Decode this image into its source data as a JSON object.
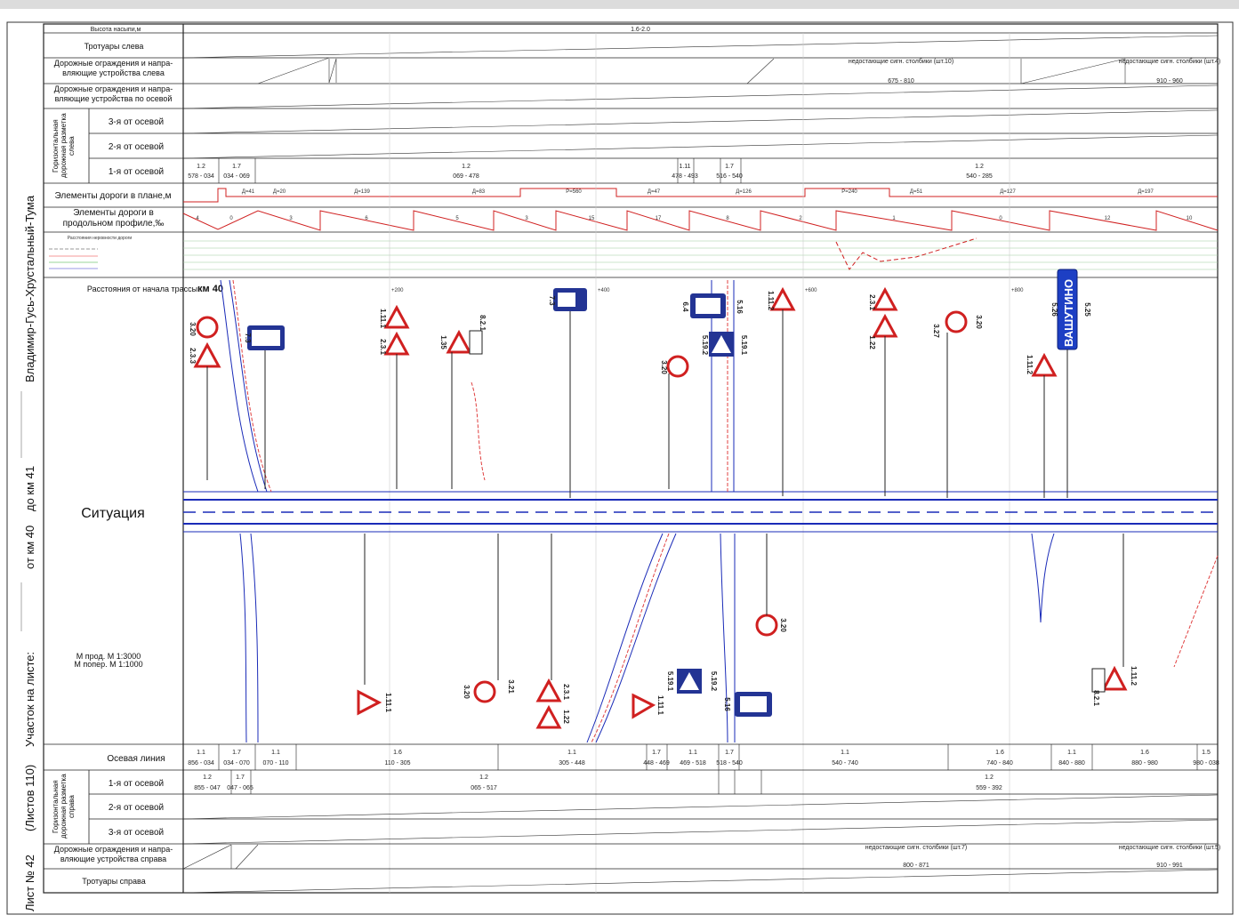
{
  "side_title": {
    "sheet": "Лист № 42",
    "sheets_total": "(Листов 110)",
    "section_label": "Участок на листе:",
    "from_km": "от км 40",
    "to_km": "до км 41",
    "road": "Владимир-Гусь-Хрустальный-Тума"
  },
  "top_rows": {
    "embankment": {
      "label": "Высота насыпи,м",
      "value": "1.6-2.0"
    },
    "sidewalks_left": "Тротуары слева",
    "barriers_left": "Дорожные ограждения и напра- вляющие устройства слева",
    "barriers_axis": "Дорожные ограждения и напра- вляющие устройства по осевой",
    "markings_left_group": "Горизонтальная дорожная разметка слева",
    "marking_rows": [
      "3-я от осевой",
      "2-я от осевой",
      "1-я от осевой"
    ],
    "plan_elements": "Элементы дороги в плане,м",
    "profile_elements": "Элементы дороги в продольном профиле,‰",
    "unevenness": "Расстояния неровности дороги"
  },
  "barrier_notes_left": [
    {
      "text": "недостающие сигн. столбики (шт.10)",
      "range": "675 - 810"
    },
    {
      "text": "недостающие сигн. столбики (шт.4)",
      "range": "910 - 960"
    }
  ],
  "left_marking_1": [
    {
      "code": "1.2",
      "range": "578 - 034"
    },
    {
      "code": "1.7",
      "range": "034 - 069"
    },
    {
      "code": "1.2",
      "range": "069 - 478"
    },
    {
      "code": "1.11",
      "range": "478 - 493"
    },
    {
      "code": "1.7",
      "range": "516 - 540"
    },
    {
      "code": "1.2",
      "range": "540 - 285"
    }
  ],
  "plan_labels": [
    "Д=41",
    "Д=20",
    "Д=139",
    "Д=83",
    "Р=560",
    "Д=47",
    "Д=126",
    "Р=240",
    "Д=51",
    "Д=127",
    "Д=197"
  ],
  "profile_values": [
    "4",
    "0",
    "3",
    "6",
    "5",
    "3",
    "15",
    "17",
    "8",
    "2",
    "1",
    "0",
    "12",
    "10"
  ],
  "distance_label": "Расстояния от начала трассы",
  "km_start": "км 40",
  "pickets": [
    "+200",
    "+400",
    "+600",
    "+800"
  ],
  "situation": "Ситуация",
  "scale": {
    "long": "М прод.  М 1:3000",
    "cross": "М попер.  М 1:1000"
  },
  "village": "ВАШУТИНО",
  "signs_top": [
    "2.3.3",
    "3.20",
    "7.3",
    "2.3.1",
    "1.11.1",
    "1.35",
    "8.2.1",
    "7.3",
    "5.16",
    "6.4",
    "5.19.1",
    "5.19.2",
    "3.20",
    "1.11.2",
    "1.22",
    "2.3.1",
    "3.20",
    "3.27",
    "1.11.2",
    "5.25",
    "5.26"
  ],
  "signs_bottom": [
    "1.11.1",
    "3.20",
    "3.21",
    "2.3.1",
    "1.22",
    "1.11.1",
    "5.19.1",
    "5.19.2",
    "5.16",
    "3.20",
    "1.11.2",
    "8.2.1"
  ],
  "bottom_rows": {
    "axis_line": "Осевая линия",
    "markings_right_group": "Горизонтальная дорожная разметка справа",
    "marking_rows": [
      "1-я от осевой",
      "2-я от осевой",
      "3-я от осевой"
    ],
    "barriers_right": "Дорожные ограждения и напра- вляющие устройства справа",
    "sidewalks_right": "Тротуары справа"
  },
  "axis_marking": [
    {
      "code": "1.1",
      "range": "856 - 034"
    },
    {
      "code": "1.7",
      "range": "034 - 070"
    },
    {
      "code": "1.1",
      "range": "070 - 110"
    },
    {
      "code": "1.6",
      "range": "110 - 305"
    },
    {
      "code": "1.1",
      "range": "305 - 448"
    },
    {
      "code": "1.7",
      "range": "448 - 469"
    },
    {
      "code": "1.1",
      "range": "469 - 518"
    },
    {
      "code": "1.7",
      "range": "518 - 540"
    },
    {
      "code": "1.1",
      "range": "540 - 740"
    },
    {
      "code": "1.6",
      "range": "740 - 840"
    },
    {
      "code": "1.1",
      "range": "840 - 880"
    },
    {
      "code": "1.6",
      "range": "880 - 980"
    },
    {
      "code": "1.5",
      "range": "980 - 038"
    }
  ],
  "right_marking_1": [
    {
      "code": "1.2",
      "range": "855 - 047"
    },
    {
      "code": "1.7",
      "range": "047 - 065"
    },
    {
      "code": "1.2",
      "range": "065 - 517"
    },
    {
      "code": "1.2",
      "range": "559 - 392"
    }
  ],
  "barrier_notes_right": [
    {
      "text": "недостающие сигн. столбики (шт.7)",
      "range": "800 - 871"
    },
    {
      "text": "недостающие сигн. столбики (шт.5)",
      "range": "910 - 991"
    }
  ],
  "colors": {
    "road": "#1a2bb8",
    "signs_red": "#d02020",
    "grid": "#222222"
  }
}
